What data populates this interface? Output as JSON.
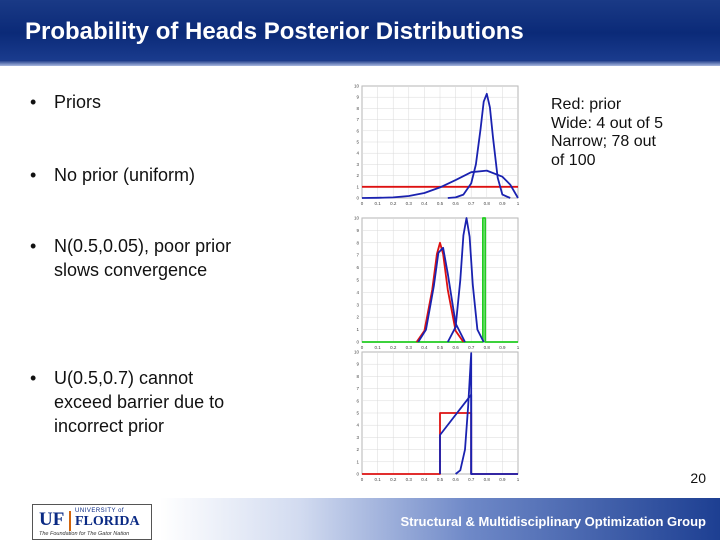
{
  "title": "Probability of Heads Posterior Distributions",
  "bullets": [
    "Priors",
    "No prior (uniform)",
    [
      "N(0.5,0.05), poor prior",
      "slows convergence"
    ],
    [
      "U(0.5,0.7) cannot",
      "exceed barrier due to",
      "incorrect prior"
    ]
  ],
  "bullet_symbol": "•",
  "note_lines": [
    "Red: prior",
    "Wide: 4 out of 5",
    "Narrow; 78 out",
    "of 100"
  ],
  "page_number": "20",
  "footer": "Structural & Multidisciplinary Optimization Group",
  "logo": {
    "uf": "UF",
    "university_of": "UNIVERSITY of",
    "florida": "FLORIDA",
    "tagline": "The Foundation for The Gator Nation"
  },
  "colors": {
    "title_bg": "#1d3f92",
    "prior": "#dd1111",
    "posterior": "#1a22b0",
    "uniform": "#22cc22"
  },
  "chart_data": [
    {
      "type": "line",
      "xlim": [
        0,
        1
      ],
      "ylim": [
        0,
        10
      ],
      "x_ticks": [
        "0",
        "0.1",
        "0.2",
        "0.3",
        "0.4",
        "0.5",
        "0.6",
        "0.7",
        "0.8",
        "0.9",
        "1"
      ],
      "y_ticks": [
        "0",
        "1",
        "2",
        "3",
        "4",
        "5",
        "6",
        "7",
        "8",
        "9",
        "10"
      ],
      "series": [
        {
          "color": "#dd1111",
          "x": [
            0,
            1
          ],
          "y": [
            1,
            1
          ]
        },
        {
          "color": "#1a22b0",
          "x": [
            0,
            0.1,
            0.2,
            0.3,
            0.4,
            0.5,
            0.6,
            0.7,
            0.8,
            0.9,
            0.95,
            1
          ],
          "y": [
            0,
            0.02,
            0.05,
            0.18,
            0.45,
            0.95,
            1.6,
            2.3,
            2.45,
            1.9,
            1.2,
            0
          ]
        },
        {
          "color": "#1a22b0",
          "x": [
            0.55,
            0.6,
            0.65,
            0.7,
            0.73,
            0.76,
            0.78,
            0.8,
            0.82,
            0.84,
            0.87,
            0.9,
            0.95
          ],
          "y": [
            0,
            0.05,
            0.3,
            1.3,
            3,
            6.2,
            8.6,
            9.3,
            8.1,
            5.4,
            1.8,
            0.3,
            0
          ]
        }
      ]
    },
    {
      "type": "line",
      "xlim": [
        0,
        1
      ],
      "ylim": [
        0,
        10
      ],
      "x_ticks": [
        "0",
        "0.1",
        "0.2",
        "0.3",
        "0.4",
        "0.5",
        "0.6",
        "0.7",
        "0.8",
        "0.9",
        "1"
      ],
      "y_ticks": [
        "0",
        "1",
        "2",
        "3",
        "4",
        "5",
        "6",
        "7",
        "8",
        "9",
        "10"
      ],
      "series": [
        {
          "color": "#22cc22",
          "x": [
            0,
            0.775,
            0.775,
            0.79,
            0.79,
            1
          ],
          "y": [
            0,
            0,
            10,
            10,
            0,
            0
          ]
        },
        {
          "color": "#dd1111",
          "x": [
            0.35,
            0.4,
            0.45,
            0.48,
            0.5,
            0.52,
            0.55,
            0.6,
            0.65
          ],
          "y": [
            0,
            0.9,
            4.2,
            7.1,
            8,
            7.1,
            4.2,
            0.9,
            0
          ]
        },
        {
          "color": "#1a22b0",
          "x": [
            0.36,
            0.41,
            0.46,
            0.49,
            0.52,
            0.55,
            0.6,
            0.66
          ],
          "y": [
            0,
            1,
            4.5,
            7.2,
            7.6,
            5.5,
            1.5,
            0
          ]
        },
        {
          "color": "#1a22b0",
          "x": [
            0.55,
            0.6,
            0.63,
            0.65,
            0.67,
            0.69,
            0.71,
            0.74,
            0.78
          ],
          "y": [
            0,
            1.2,
            5,
            8.6,
            10,
            8.5,
            4.6,
            1,
            0
          ]
        }
      ]
    },
    {
      "type": "line",
      "xlim": [
        0,
        1
      ],
      "ylim": [
        0,
        10
      ],
      "x_ticks": [
        "0",
        "0.1",
        "0.2",
        "0.3",
        "0.4",
        "0.5",
        "0.6",
        "0.7",
        "0.8",
        "0.9",
        "1"
      ],
      "y_ticks": [
        "0",
        "1",
        "2",
        "3",
        "4",
        "5",
        "6",
        "7",
        "8",
        "9",
        "10"
      ],
      "series": [
        {
          "color": "#dd1111",
          "x": [
            0,
            0.5,
            0.5,
            0.7,
            0.7,
            1
          ],
          "y": [
            0,
            0,
            5,
            5,
            0,
            0
          ]
        },
        {
          "color": "#1a22b0",
          "x": [
            0.5,
            0.5,
            0.7,
            0.7,
            1
          ],
          "y": [
            0,
            3.2,
            6.5,
            0,
            0
          ]
        },
        {
          "color": "#1a22b0",
          "x": [
            0.6,
            0.63,
            0.66,
            0.68,
            0.7,
            0.7,
            0.71
          ],
          "y": [
            0,
            0.3,
            2,
            5.5,
            9.9,
            0,
            0
          ]
        }
      ]
    }
  ]
}
